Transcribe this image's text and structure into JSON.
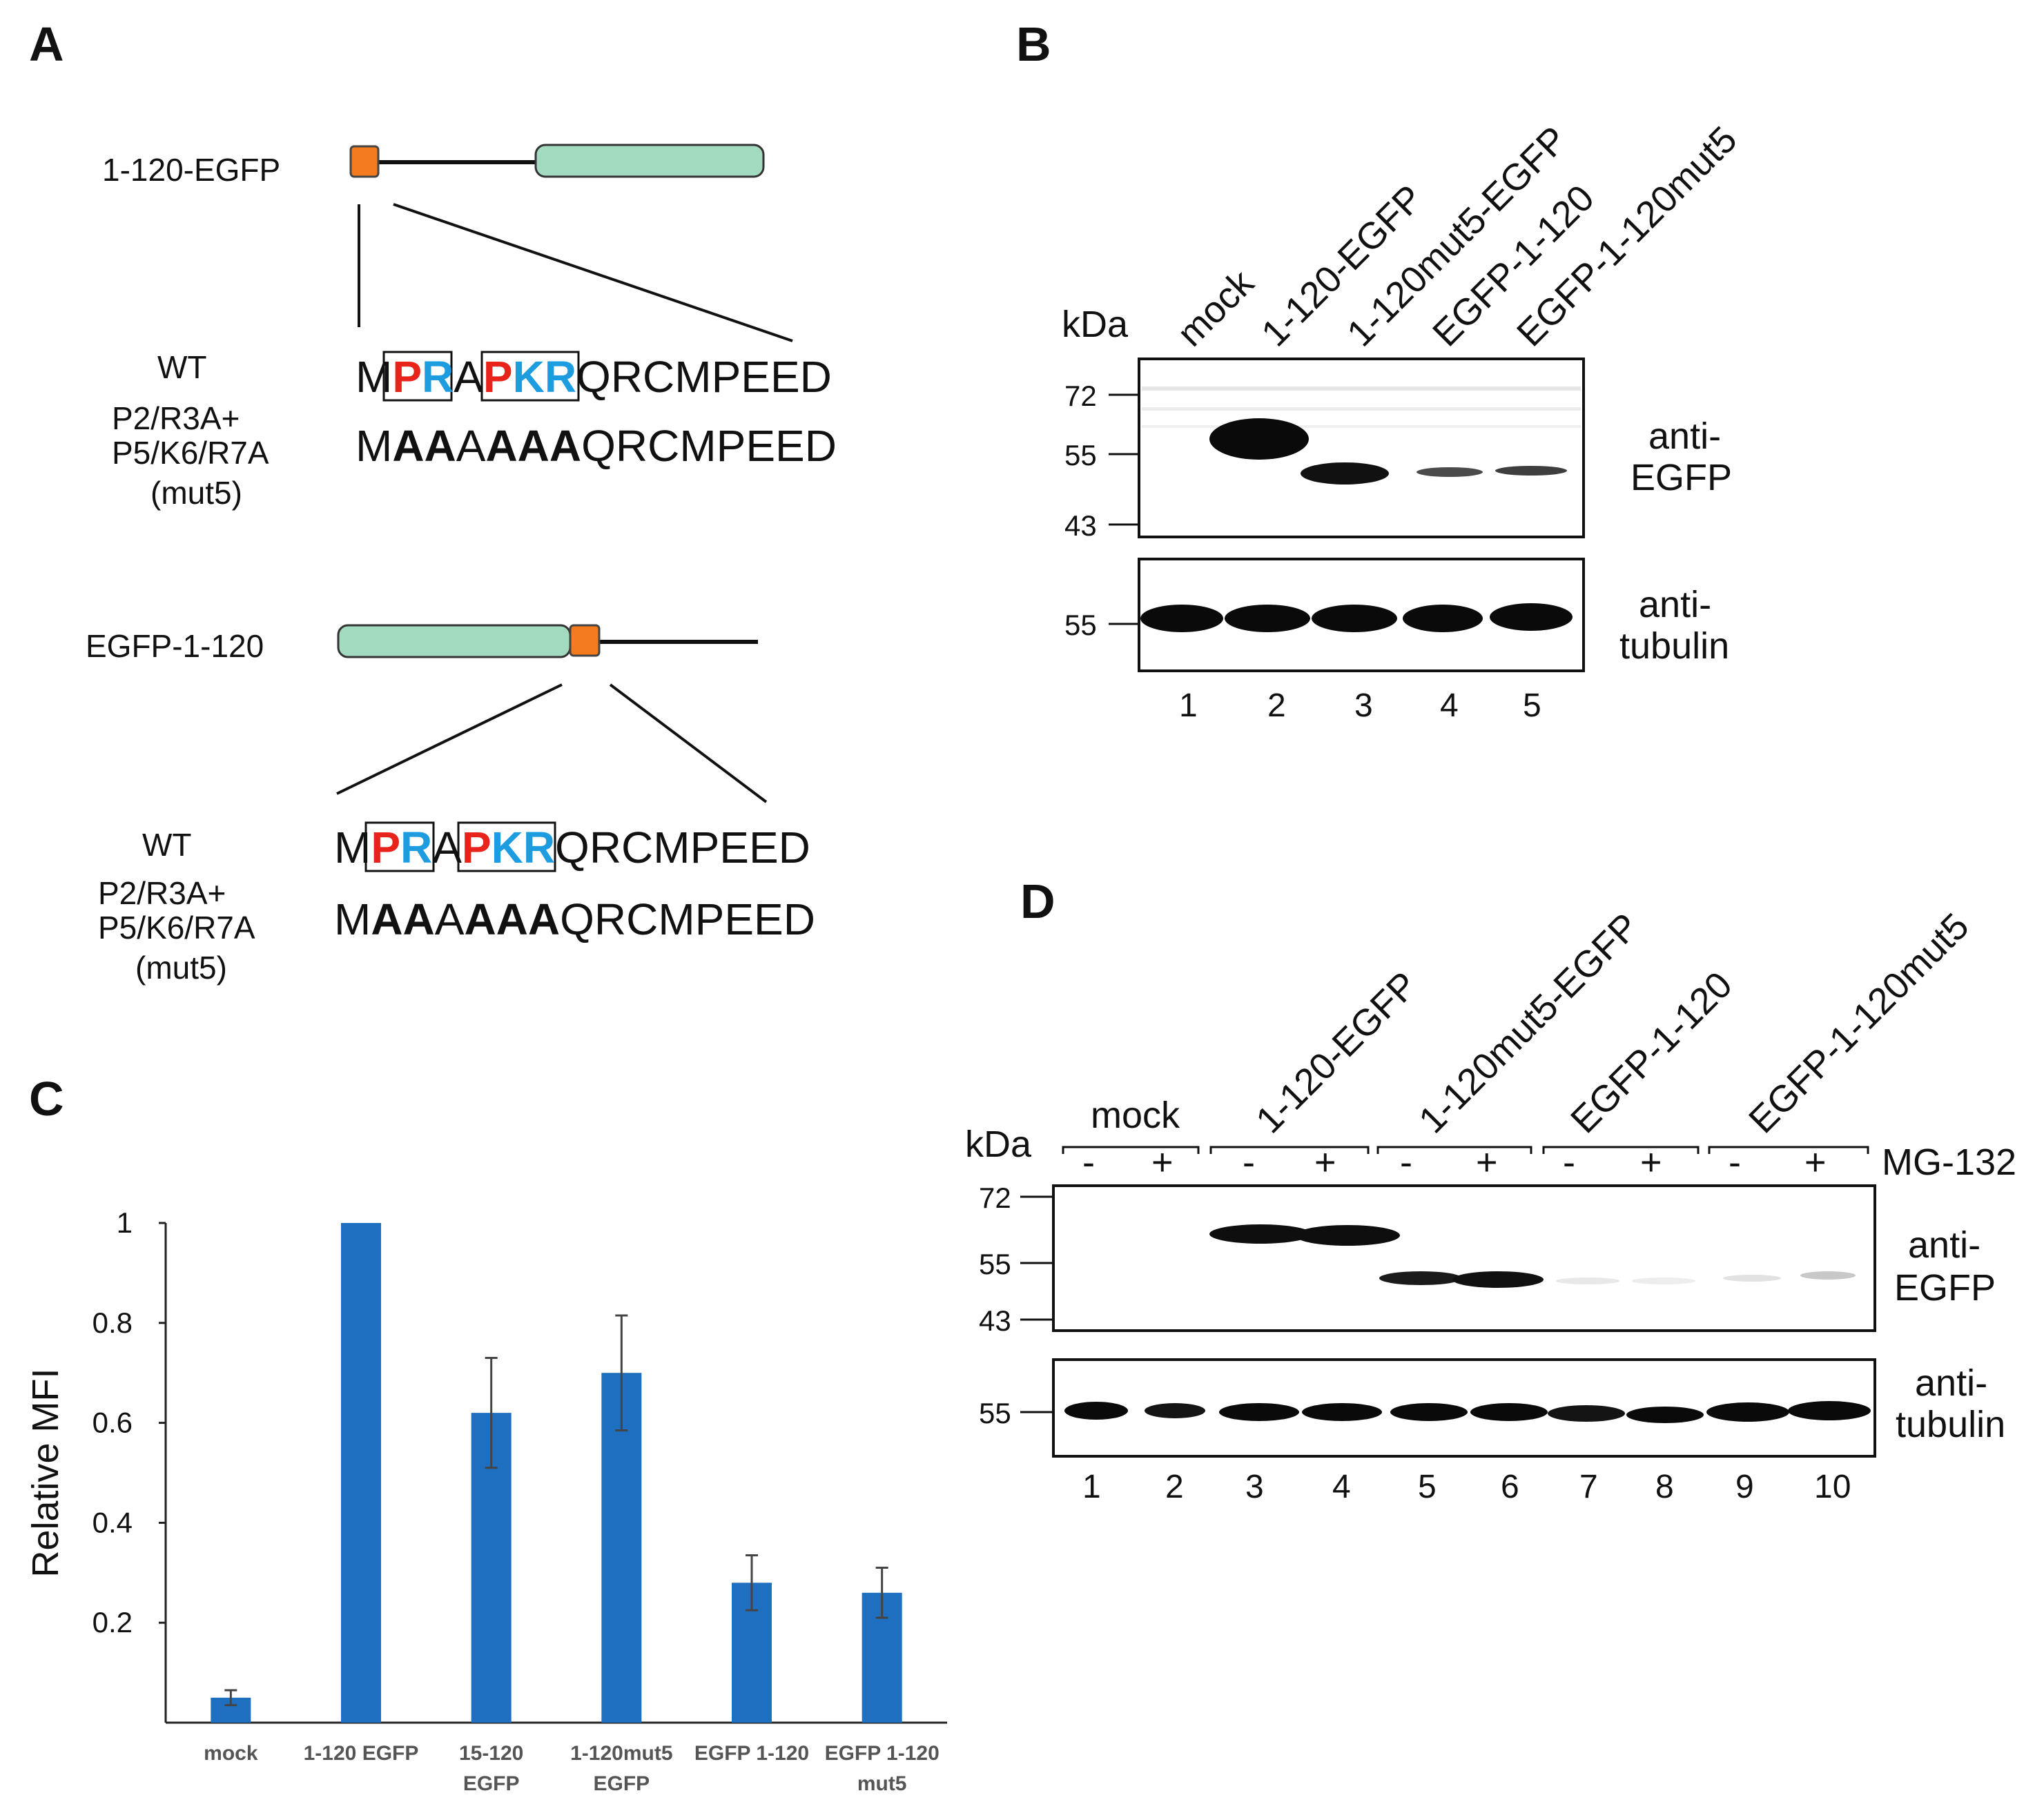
{
  "panels": {
    "a": "A",
    "b": "B",
    "c": "C",
    "d": "D"
  },
  "panel_a": {
    "construct1": "1-120-EGFP",
    "construct2": "EGFP-1-120",
    "wt_label": "WT",
    "mut_label_line1": "P2/R3A+",
    "mut_label_line2": "P5/K6/R7A",
    "mut_label_line3": "(mut5)",
    "wt_seq": [
      "M",
      "P",
      "R",
      "A",
      "P",
      "K",
      "R",
      "QRCMPEED"
    ],
    "mut_seq": [
      "M",
      "AA",
      "A",
      "AAA",
      "QRCMPEED"
    ],
    "colors": {
      "proline": "#e8231c",
      "basic": "#1d9ce0",
      "egfp_box": "#a3dbc0",
      "nls_box": "#f47b1f"
    }
  },
  "panel_b": {
    "lanes": [
      "mock",
      "1-120-EGFP",
      "1-120mut5-EGFP",
      "EGFP-1-120",
      "EGFP-1-120mut5"
    ],
    "kda_label": "kDa",
    "markers_top": [
      "72",
      "55",
      "43"
    ],
    "markers_bottom": [
      "55"
    ],
    "antibody_top": [
      "anti-",
      "EGFP"
    ],
    "antibody_bottom": [
      "anti-",
      "tubulin"
    ],
    "lane_numbers": [
      "1",
      "2",
      "3",
      "4",
      "5"
    ]
  },
  "panel_d": {
    "groups": [
      "mock",
      "1-120-EGFP",
      "1-120mut5-EGFP",
      "EGFP-1-120",
      "EGFP-1-120mut5"
    ],
    "treatment_signs": [
      "-",
      "+",
      "-",
      "+",
      "-",
      "+",
      "-",
      "+",
      "-",
      "+"
    ],
    "treatment": "MG-132",
    "kda_label": "kDa",
    "markers_top": [
      "72",
      "55",
      "43"
    ],
    "markers_bottom": [
      "55"
    ],
    "antibody_top": [
      "anti-",
      "EGFP"
    ],
    "antibody_bottom": [
      "anti-",
      "tubulin"
    ],
    "lane_numbers": [
      "1",
      "2",
      "3",
      "4",
      "5",
      "6",
      "7",
      "8",
      "9",
      "10"
    ]
  },
  "chart_data": {
    "type": "bar",
    "title": "",
    "xlabel": "",
    "ylabel": "Relative MFI",
    "ylim": [
      0,
      1
    ],
    "yticks": [
      "0.2",
      "0.4",
      "0.6",
      "0.8",
      "1"
    ],
    "categories": [
      [
        "mock"
      ],
      [
        "1-120  EGFP"
      ],
      [
        "15-120",
        "EGFP"
      ],
      [
        "1-120mut5",
        "EGFP"
      ],
      [
        "EGFP 1-120"
      ],
      [
        "EGFP 1-120",
        "mut5"
      ]
    ],
    "values": [
      0.05,
      1.0,
      0.62,
      0.7,
      0.28,
      0.26
    ],
    "errors": [
      0.015,
      0.0,
      0.11,
      0.115,
      0.055,
      0.05
    ],
    "bar_color": "#1f6fc1"
  }
}
